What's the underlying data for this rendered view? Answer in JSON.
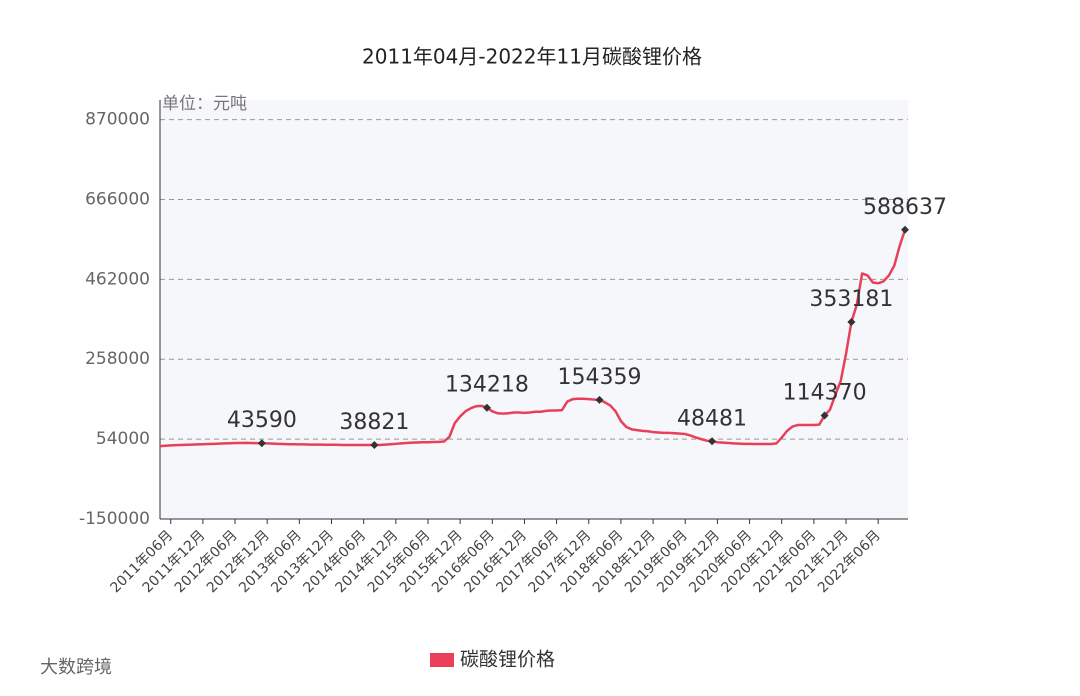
{
  "chart_data": {
    "type": "line",
    "title": "2011年04月-2022年11月碳酸锂价格",
    "subtitle": "单位：元吨",
    "watermark": "大数跨境",
    "ylim": [
      -150000,
      920000
    ],
    "yticks": [
      -150000,
      54000,
      258000,
      462000,
      666000,
      870000
    ],
    "grid": true,
    "legend": "bottom",
    "categories": [
      null,
      null,
      "2011年06月",
      null,
      null,
      null,
      null,
      null,
      "2011年12月",
      null,
      null,
      null,
      null,
      null,
      "2012年06月",
      null,
      null,
      null,
      null,
      null,
      "2012年12月",
      null,
      null,
      null,
      null,
      null,
      "2013年06月",
      null,
      null,
      null,
      null,
      null,
      "2013年12月",
      null,
      null,
      null,
      null,
      null,
      "2014年06月",
      null,
      null,
      null,
      null,
      null,
      "2014年12月",
      null,
      null,
      null,
      null,
      null,
      "2015年06月",
      null,
      null,
      null,
      null,
      null,
      "2015年12月",
      null,
      null,
      null,
      null,
      null,
      "2016年06月",
      null,
      null,
      null,
      null,
      null,
      "2016年12月",
      null,
      null,
      null,
      null,
      null,
      "2017年06月",
      null,
      null,
      null,
      null,
      null,
      "2017年12月",
      null,
      null,
      null,
      null,
      null,
      "2018年06月",
      null,
      null,
      null,
      null,
      null,
      "2018年12月",
      null,
      null,
      null,
      null,
      null,
      "2019年06月",
      null,
      null,
      null,
      null,
      null,
      "2019年12月",
      null,
      null,
      null,
      null,
      null,
      "2020年06月",
      null,
      null,
      null,
      null,
      null,
      "2020年12月",
      null,
      null,
      null,
      null,
      null,
      "2021年06月",
      null,
      null,
      null,
      null,
      null,
      "2021年12月",
      null,
      null,
      null,
      null,
      null,
      "2022年06月",
      null,
      null,
      null,
      null,
      null
    ],
    "series": [
      {
        "name": "碳酸锂价格",
        "color": "#e8405a",
        "values": [
          36000,
          37000,
          38000,
          38500,
          39000,
          39500,
          40000,
          40500,
          41000,
          41500,
          42000,
          42500,
          43000,
          43500,
          44000,
          44000,
          44500,
          44000,
          43800,
          43590,
          43000,
          42500,
          42000,
          41500,
          41000,
          41000,
          40500,
          40500,
          40000,
          40000,
          40000,
          39500,
          39500,
          39500,
          39000,
          39000,
          39000,
          39000,
          39000,
          38900,
          38821,
          39000,
          40000,
          41000,
          42000,
          43000,
          44000,
          45000,
          45500,
          46000,
          46000,
          46500,
          47000,
          48000,
          60000,
          95000,
          112000,
          125000,
          133000,
          138000,
          139000,
          134218,
          125000,
          120000,
          119000,
          120000,
          122000,
          122000,
          121000,
          122000,
          124000,
          124000,
          126000,
          127000,
          127000,
          128000,
          150000,
          156000,
          157000,
          157000,
          156000,
          155000,
          154359,
          148000,
          140000,
          125000,
          100000,
          85000,
          79000,
          77000,
          75000,
          74000,
          72000,
          71000,
          70000,
          70000,
          69000,
          68000,
          67000,
          63000,
          58000,
          54000,
          50000,
          48481,
          46000,
          45000,
          44000,
          43000,
          42500,
          42000,
          42000,
          41500,
          41500,
          41500,
          41500,
          43000,
          58000,
          75000,
          86000,
          90000,
          90000,
          90000,
          90000,
          91000,
          114370,
          129000,
          167000,
          202000,
          272000,
          353181,
          397000,
          477000,
          472000,
          454000,
          452000,
          457000,
          472000,
          497000,
          547000,
          588637
        ],
        "value_labels": [
          null,
          null,
          null,
          null,
          null,
          null,
          null,
          null,
          null,
          null,
          null,
          null,
          null,
          null,
          null,
          null,
          null,
          null,
          null,
          "43590",
          null,
          null,
          null,
          null,
          null,
          null,
          null,
          null,
          null,
          null,
          null,
          null,
          null,
          null,
          null,
          null,
          null,
          null,
          null,
          null,
          "38821",
          null,
          null,
          null,
          null,
          null,
          null,
          null,
          null,
          null,
          null,
          null,
          null,
          null,
          null,
          null,
          null,
          null,
          null,
          null,
          null,
          "134218",
          null,
          null,
          null,
          null,
          null,
          null,
          null,
          null,
          null,
          null,
          null,
          null,
          null,
          null,
          null,
          null,
          null,
          null,
          null,
          null,
          "154359",
          null,
          null,
          null,
          null,
          null,
          null,
          null,
          null,
          null,
          null,
          null,
          null,
          null,
          null,
          null,
          null,
          null,
          null,
          null,
          null,
          "48481",
          null,
          null,
          null,
          null,
          null,
          null,
          null,
          null,
          null,
          null,
          null,
          null,
          null,
          null,
          null,
          null,
          null,
          null,
          null,
          null,
          "114370",
          null,
          null,
          null,
          null,
          "353181",
          null,
          null,
          null,
          null,
          null,
          null,
          null,
          null,
          null,
          "588637"
        ]
      }
    ]
  }
}
